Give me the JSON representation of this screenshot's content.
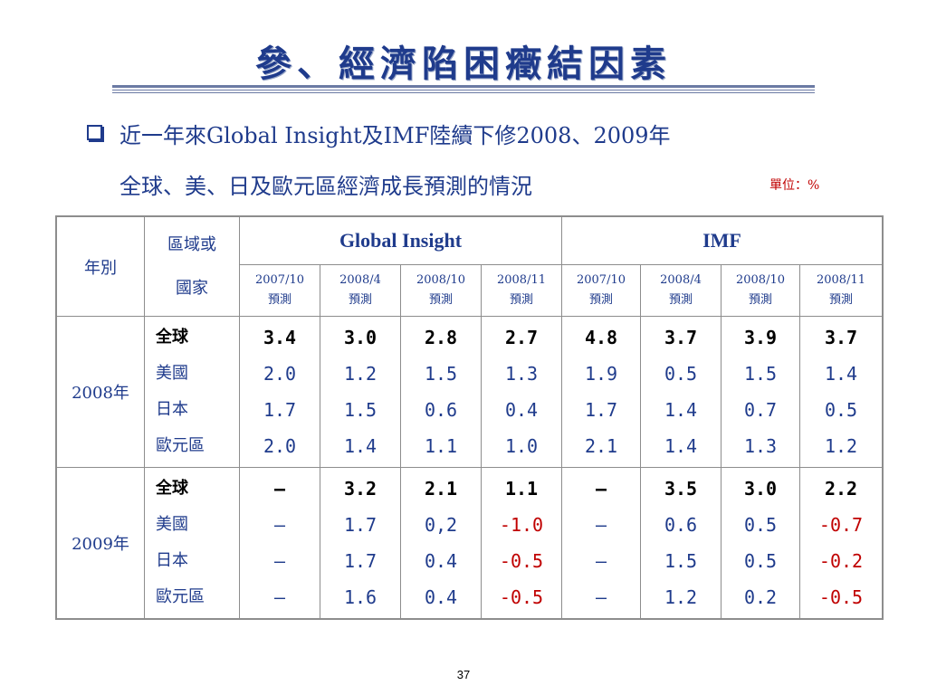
{
  "title": "參、經濟陷困癥結因素",
  "subtitle_line1": "近一年來Global Insight及IMF陸續下修2008、2009年",
  "subtitle_line2": "全球、美、日及歐元區經濟成長預測的情況",
  "unit": "單位：%",
  "table": {
    "col_year": "年別",
    "col_region_1": "區域或",
    "col_region_2": "國家",
    "group_gi": "Global Insight",
    "group_imf": "IMF",
    "sub_headers": [
      {
        "date": "2007/10",
        "label": "預測"
      },
      {
        "date": "2008/4",
        "label": "預測"
      },
      {
        "date": "2008/10",
        "label": "預測"
      },
      {
        "date": "2008/11",
        "label": "預測"
      },
      {
        "date": "2007/10",
        "label": "預測"
      },
      {
        "date": "2008/4",
        "label": "預測"
      },
      {
        "date": "2008/10",
        "label": "預測"
      },
      {
        "date": "2008/11",
        "label": "預測"
      }
    ],
    "blocks": [
      {
        "year": "2008年",
        "regions": [
          "全球",
          "美國",
          "日本",
          "歐元區"
        ],
        "cols": [
          [
            "3.4",
            "2.0",
            "1.7",
            "2.0"
          ],
          [
            "3.0",
            "1.2",
            "1.5",
            "1.4"
          ],
          [
            "2.8",
            "1.5",
            "0.6",
            "1.1"
          ],
          [
            "2.7",
            "1.3",
            "0.4",
            "1.0"
          ],
          [
            "4.8",
            "1.9",
            "1.7",
            "2.1"
          ],
          [
            "3.7",
            "0.5",
            "1.4",
            "1.4"
          ],
          [
            "3.9",
            "1.5",
            "0.7",
            "1.3"
          ],
          [
            "3.7",
            "1.4",
            "0.5",
            "1.2"
          ]
        ]
      },
      {
        "year": "2009年",
        "regions": [
          "全球",
          "美國",
          "日本",
          "歐元區"
        ],
        "cols": [
          [
            "—",
            "—",
            "—",
            "—"
          ],
          [
            "3.2",
            "1.7",
            "1.7",
            "1.6"
          ],
          [
            "2.1",
            "0,2",
            "0.4",
            "0.4"
          ],
          [
            "1.1",
            "-1.0",
            "-0.5",
            "-0.5"
          ],
          [
            "—",
            "—",
            "—",
            "—"
          ],
          [
            "3.5",
            "0.6",
            "1.5",
            "1.2"
          ],
          [
            "3.0",
            "0.5",
            "0.5",
            "0.2"
          ],
          [
            "2.2",
            "-0.7",
            "-0.2",
            "-0.5"
          ]
        ]
      }
    ]
  },
  "page_number": "37",
  "colors": {
    "accent": "#1f3b8c",
    "negative": "#c00000",
    "border": "#8d8d8d"
  }
}
